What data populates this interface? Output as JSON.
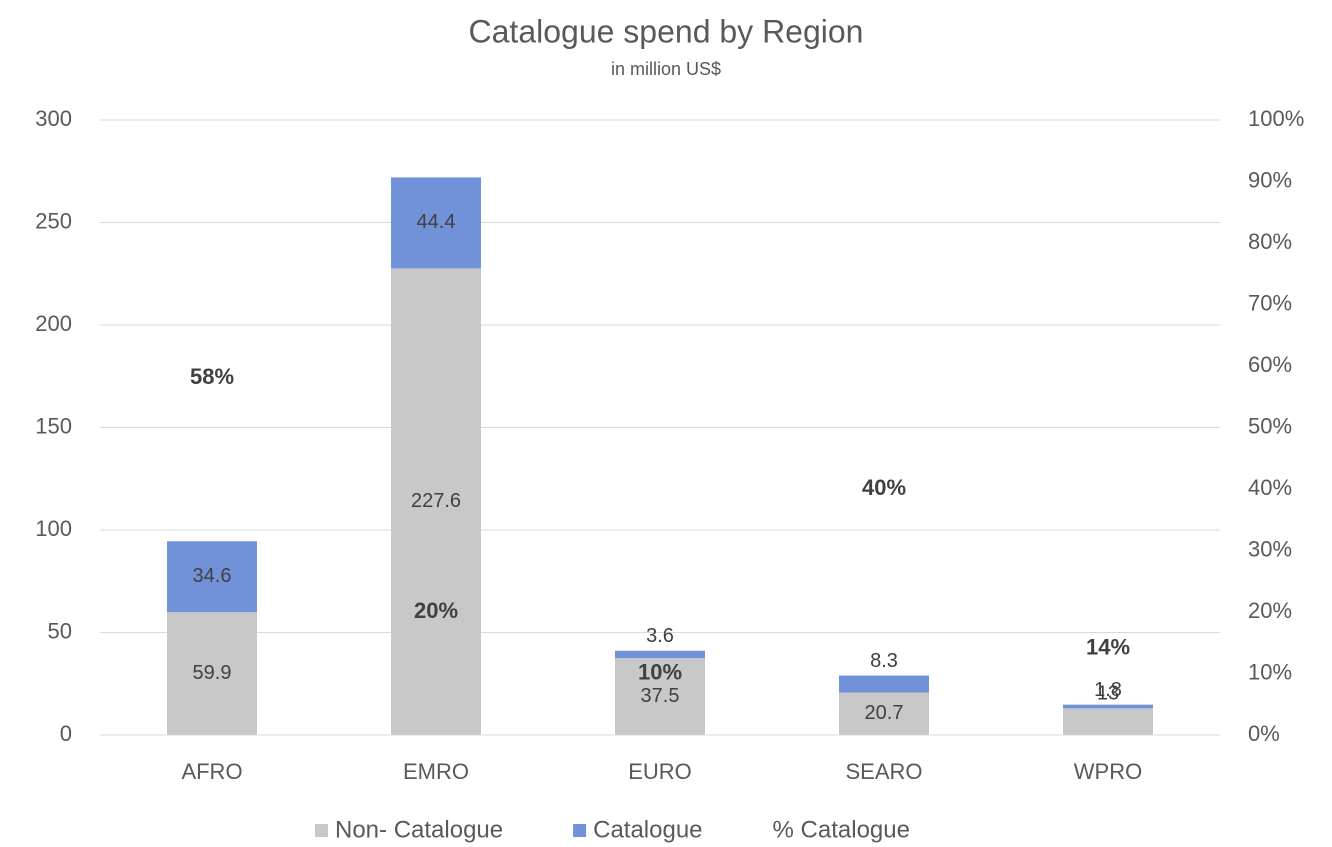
{
  "chart_data": {
    "type": "bar",
    "stacked": true,
    "title": "Catalogue spend by Region",
    "subtitle": "in million US$",
    "categories": [
      "AFRO",
      "EMRO",
      "EURO",
      "SEARO",
      "WPRO"
    ],
    "series": [
      {
        "name": "Non- Catalogue",
        "color": "#c8c8c8",
        "values": [
          59.9,
          227.6,
          37.5,
          20.7,
          13
        ]
      },
      {
        "name": "Catalogue",
        "color": "#7191d9",
        "values": [
          34.6,
          44.4,
          3.6,
          8.3,
          1.8
        ]
      },
      {
        "name": "% Catalogue",
        "axis": "y2",
        "type": "line",
        "values": [
          58,
          20,
          10,
          40,
          14
        ],
        "value_labels": [
          "58%",
          "20%",
          "10%",
          "40%",
          "14%"
        ]
      }
    ],
    "ylim": [
      0,
      300
    ],
    "yticks": [
      0,
      50,
      100,
      150,
      200,
      250,
      300
    ],
    "y2lim": [
      0,
      100
    ],
    "y2ticks": [
      {
        "value": 0,
        "label": "0%"
      },
      {
        "value": 10,
        "label": "10%"
      },
      {
        "value": 20,
        "label": "20%"
      },
      {
        "value": 30,
        "label": "30%"
      },
      {
        "value": 40,
        "label": "40%"
      },
      {
        "value": 50,
        "label": "50%"
      },
      {
        "value": 60,
        "label": "60%"
      },
      {
        "value": 70,
        "label": "70%"
      },
      {
        "value": 80,
        "label": "80%"
      },
      {
        "value": 90,
        "label": "90%"
      },
      {
        "value": 100,
        "label": "100%"
      }
    ],
    "grid": true,
    "legend": "bottom"
  }
}
